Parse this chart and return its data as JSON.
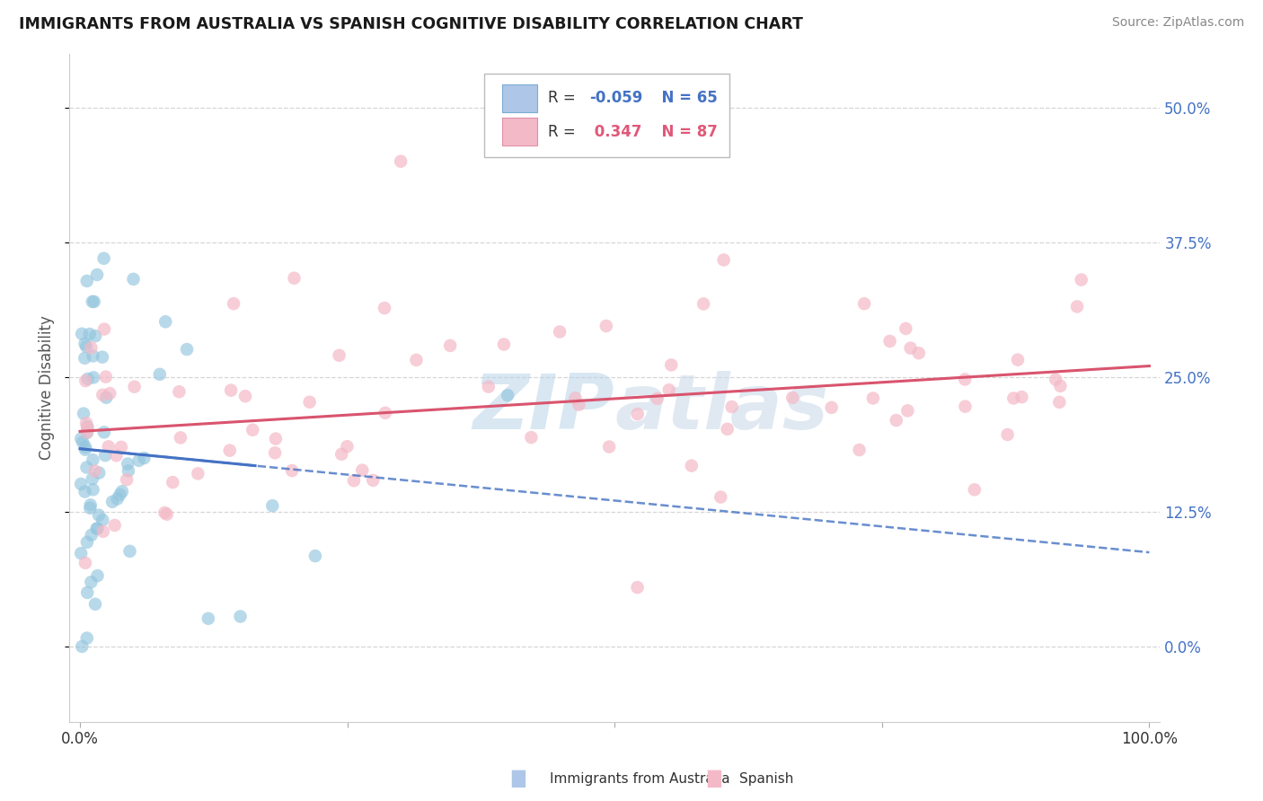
{
  "title": "IMMIGRANTS FROM AUSTRALIA VS SPANISH COGNITIVE DISABILITY CORRELATION CHART",
  "source": "Source: ZipAtlas.com",
  "ylabel": "Cognitive Disability",
  "series1_label": "Immigrants from Australia",
  "series1_R": -0.059,
  "series1_N": 65,
  "series1_color": "#92c5de",
  "series2_label": "Spanish",
  "series2_R": 0.347,
  "series2_N": 87,
  "series2_color": "#f4b9c7",
  "xlim": [
    -1,
    101
  ],
  "ylim": [
    -7,
    55
  ],
  "ytick_values": [
    0,
    12.5,
    25.0,
    37.5,
    50.0
  ],
  "ytick_labels": [
    "0.0%",
    "12.5%",
    "25.0%",
    "37.5%",
    "50.0%"
  ],
  "xtick_bottom_values": [
    0,
    100
  ],
  "xtick_bottom_labels": [
    "0.0%",
    "100.0%"
  ],
  "background_color": "#ffffff",
  "grid_color": "#cccccc",
  "line1_color": "#4472c4",
  "line2_color": "#d9546e",
  "legend_R1_color": "#4472c4",
  "legend_R2_color": "#e05878",
  "watermark_color1": "#b8d4e8",
  "watermark_color2": "#c8d8e8"
}
